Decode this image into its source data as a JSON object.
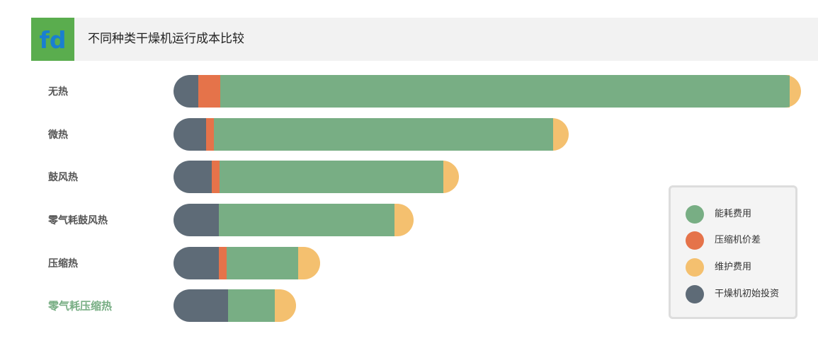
{
  "header": {
    "logo_text": "fd",
    "title": "不同种类干燥机运行成本比较"
  },
  "colors": {
    "energy": "#78ae84",
    "pressure_diff": "#e5734a",
    "maintenance": "#f4c06f",
    "initial": "#5e6b77",
    "logo_bg": "#5aad4e",
    "logo_fg": "#1a7fd0"
  },
  "chart_data": {
    "type": "bar",
    "orientation": "horizontal",
    "stacked": true,
    "categories": [
      "无热",
      "微热",
      "鼓风热",
      "零气耗鼓风热",
      "压缩热",
      "零气耗压缩热"
    ],
    "series": [
      {
        "name": "干燥机初始投资",
        "color": "#5e6b77",
        "values": [
          35,
          46,
          54,
          64,
          64,
          77
        ]
      },
      {
        "name": "压缩机价差",
        "color": "#e5734a",
        "values": [
          31,
          11,
          11,
          0,
          11,
          0
        ]
      },
      {
        "name": "能耗费用",
        "color": "#78ae84",
        "values": [
          804,
          479,
          316,
          248,
          101,
          66
        ]
      },
      {
        "name": "维护费用",
        "color": "#f4c06f",
        "values": [
          16,
          22,
          22,
          27,
          31,
          30
        ]
      }
    ],
    "legend": {
      "position": "right",
      "order": [
        "能耗费用",
        "压缩机价差",
        "维护费用",
        "干燥机初始投资"
      ]
    },
    "xlabel": "",
    "ylabel": "",
    "grid": false,
    "highlighted_category": "零气耗压缩热"
  }
}
